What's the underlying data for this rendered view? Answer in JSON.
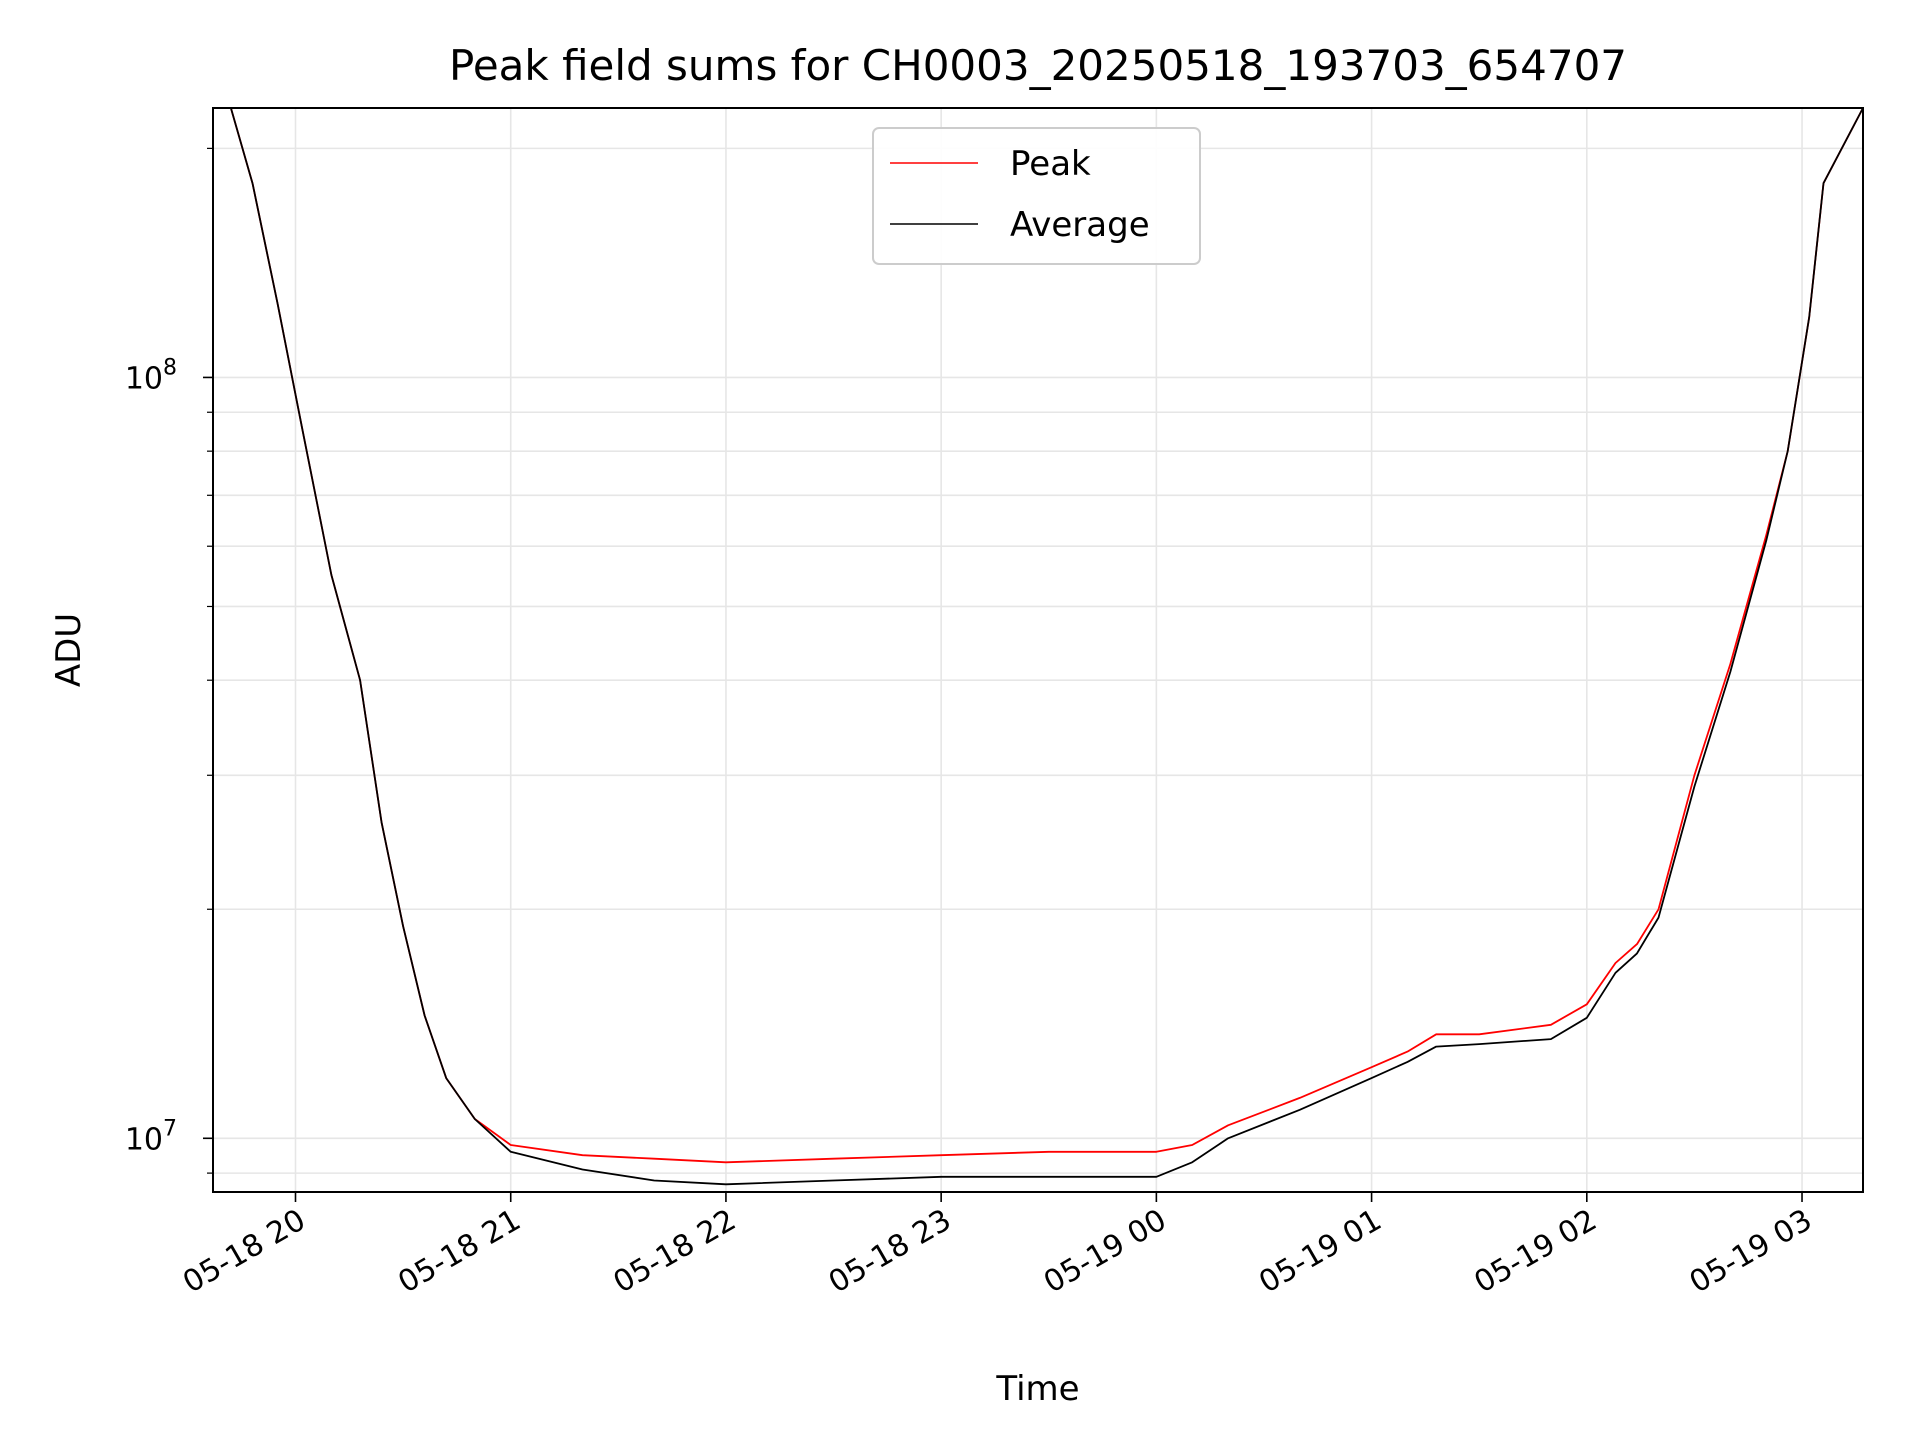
{
  "chart_data": {
    "type": "line",
    "title": "Peak field sums for CH0003_20250518_193703_654707",
    "xlabel": "Time",
    "ylabel": "ADU",
    "y_scale": "log",
    "ylim": [
      8500000,
      226000000
    ],
    "xlim": [
      "2025-05-18 19:37",
      "2025-05-19 03:17"
    ],
    "x_ticks": [
      {
        "t": "2025-05-18 20:00",
        "label": "05-18 20"
      },
      {
        "t": "2025-05-18 21:00",
        "label": "05-18 21"
      },
      {
        "t": "2025-05-18 22:00",
        "label": "05-18 22"
      },
      {
        "t": "2025-05-18 23:00",
        "label": "05-18 23"
      },
      {
        "t": "2025-05-19 00:00",
        "label": "05-19 00"
      },
      {
        "t": "2025-05-19 01:00",
        "label": "05-19 01"
      },
      {
        "t": "2025-05-19 02:00",
        "label": "05-19 02"
      },
      {
        "t": "2025-05-19 03:00",
        "label": "05-19 03"
      }
    ],
    "y_ticks_major": [
      {
        "value": 10000000,
        "base": "10",
        "exp": "7"
      },
      {
        "value": 100000000,
        "base": "10",
        "exp": "8"
      }
    ],
    "y_ticks_minor": [
      9000000,
      20000000,
      30000000,
      40000000,
      50000000,
      60000000,
      70000000,
      80000000,
      90000000,
      200000000
    ],
    "grid": true,
    "legend_position": "top-center",
    "series": [
      {
        "name": "Peak",
        "color": "#ff0000",
        "x": [
          "2025-05-18 19:42",
          "2025-05-18 19:48",
          "2025-05-18 19:55",
          "2025-05-18 20:02",
          "2025-05-18 20:10",
          "2025-05-18 20:18",
          "2025-05-18 20:24",
          "2025-05-18 20:30",
          "2025-05-18 20:36",
          "2025-05-18 20:42",
          "2025-05-18 20:50",
          "2025-05-18 21:00",
          "2025-05-18 21:20",
          "2025-05-18 21:40",
          "2025-05-18 22:00",
          "2025-05-18 22:30",
          "2025-05-18 23:00",
          "2025-05-18 23:30",
          "2025-05-19 00:00",
          "2025-05-19 00:10",
          "2025-05-19 00:20",
          "2025-05-19 00:40",
          "2025-05-19 01:00",
          "2025-05-19 01:10",
          "2025-05-19 01:18",
          "2025-05-19 01:30",
          "2025-05-19 01:50",
          "2025-05-19 02:00",
          "2025-05-19 02:08",
          "2025-05-19 02:14",
          "2025-05-19 02:20",
          "2025-05-19 02:30",
          "2025-05-19 02:40",
          "2025-05-19 02:50",
          "2025-05-19 02:56",
          "2025-05-19 03:02",
          "2025-05-19 03:06",
          "2025-05-19 03:17"
        ],
        "y": [
          226000000,
          180000000,
          125000000,
          85000000,
          55000000,
          40000000,
          26000000,
          19000000,
          14500000,
          12000000,
          10600000,
          9800000,
          9500000,
          9400000,
          9300000,
          9400000,
          9500000,
          9600000,
          9600000,
          9800000,
          10400000,
          11300000,
          12400000,
          13000000,
          13700000,
          13700000,
          14100000,
          15000000,
          17000000,
          18000000,
          20000000,
          30000000,
          42000000,
          62000000,
          80000000,
          120000000,
          180000000,
          226000000
        ]
      },
      {
        "name": "Average",
        "color": "#000000",
        "x": [
          "2025-05-18 19:42",
          "2025-05-18 19:48",
          "2025-05-18 19:55",
          "2025-05-18 20:02",
          "2025-05-18 20:10",
          "2025-05-18 20:18",
          "2025-05-18 20:24",
          "2025-05-18 20:30",
          "2025-05-18 20:36",
          "2025-05-18 20:42",
          "2025-05-18 20:50",
          "2025-05-18 21:00",
          "2025-05-18 21:20",
          "2025-05-18 21:40",
          "2025-05-18 22:00",
          "2025-05-18 22:30",
          "2025-05-18 23:00",
          "2025-05-18 23:30",
          "2025-05-19 00:00",
          "2025-05-19 00:10",
          "2025-05-19 00:20",
          "2025-05-19 00:40",
          "2025-05-19 01:00",
          "2025-05-19 01:10",
          "2025-05-19 01:18",
          "2025-05-19 01:30",
          "2025-05-19 01:50",
          "2025-05-19 02:00",
          "2025-05-19 02:08",
          "2025-05-19 02:14",
          "2025-05-19 02:20",
          "2025-05-19 02:30",
          "2025-05-19 02:40",
          "2025-05-19 02:50",
          "2025-05-19 02:56",
          "2025-05-19 03:02",
          "2025-05-19 03:06",
          "2025-05-19 03:17"
        ],
        "y": [
          226000000,
          180000000,
          125000000,
          85000000,
          55000000,
          40000000,
          26000000,
          19000000,
          14500000,
          12000000,
          10600000,
          9600000,
          9100000,
          8800000,
          8700000,
          8800000,
          8900000,
          8900000,
          8900000,
          9300000,
          10000000,
          10900000,
          12000000,
          12600000,
          13200000,
          13300000,
          13500000,
          14400000,
          16500000,
          17500000,
          19500000,
          29000000,
          41000000,
          61000000,
          80000000,
          120000000,
          180000000,
          226000000
        ]
      }
    ]
  }
}
